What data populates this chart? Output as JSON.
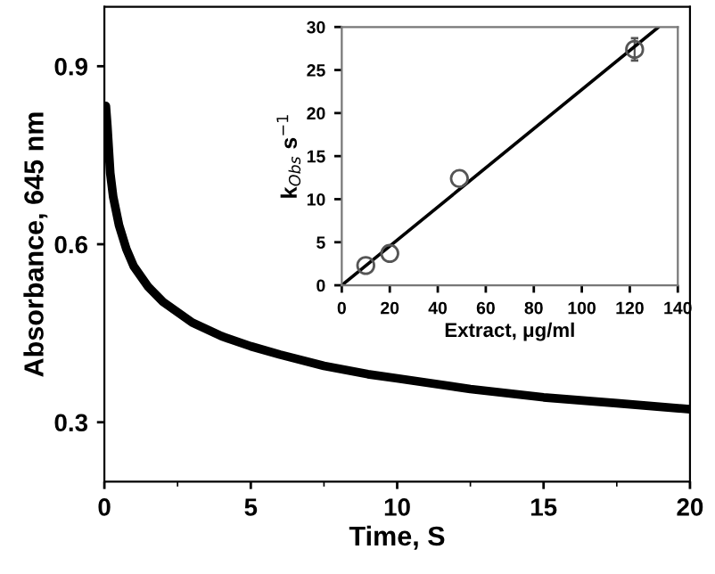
{
  "chart_data": [
    {
      "type": "line",
      "xlabel": "Time, S",
      "ylabel": "Absorbance, 645 nm",
      "xlim": [
        0,
        20
      ],
      "ylim": [
        0.2,
        1.0
      ],
      "xticks": [
        0,
        5,
        10,
        15,
        20
      ],
      "yticks": [
        0.3,
        0.6,
        0.9
      ],
      "grid": false,
      "legend": false,
      "series": [
        {
          "color": "#000000",
          "x": [
            0.05,
            0.1,
            0.2,
            0.3,
            0.5,
            0.75,
            1,
            1.5,
            2,
            3,
            4,
            5,
            6,
            7.5,
            9,
            10,
            12.5,
            15,
            17.5,
            20
          ],
          "values": [
            0.833,
            0.8,
            0.72,
            0.68,
            0.632,
            0.592,
            0.563,
            0.528,
            0.503,
            0.468,
            0.445,
            0.428,
            0.414,
            0.395,
            0.381,
            0.374,
            0.356,
            0.342,
            0.332,
            0.322
          ]
        }
      ]
    },
    {
      "type": "scatter",
      "xlabel": "Extract, μg/ml",
      "ylabel": "k$_{Obs}$ s$^{−1}$",
      "xlim": [
        0,
        140
      ],
      "ylim": [
        0,
        30
      ],
      "xticks": [
        0,
        20,
        40,
        60,
        80,
        100,
        120,
        140
      ],
      "yticks": [
        0,
        5,
        10,
        15,
        20,
        25,
        30
      ],
      "grid": false,
      "legend": false,
      "series": [
        {
          "type": "scatter",
          "marker": "circle",
          "color": "#555555",
          "x": [
            10,
            20,
            49,
            122
          ],
          "values": [
            2.3,
            3.7,
            12.4,
            27.4
          ],
          "errors": [
            null,
            null,
            null,
            1.3
          ]
        },
        {
          "type": "line",
          "color": "#000000",
          "x": [
            0,
            132
          ],
          "values": [
            0,
            30
          ]
        }
      ]
    }
  ]
}
